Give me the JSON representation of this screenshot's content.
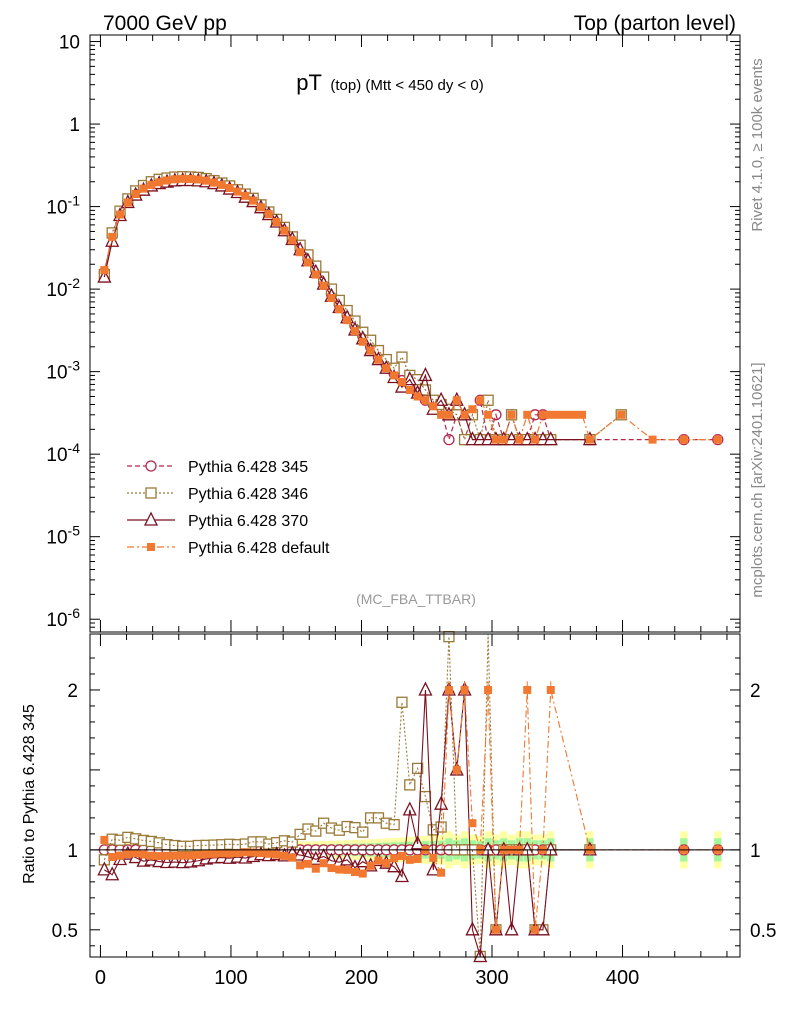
{
  "header": {
    "left": "7000 GeV pp",
    "right": "Top (parton level)"
  },
  "side_labels": {
    "rivet": "Rivet 4.1.0, ≥ 100k events",
    "mcplots": "mcplots.cern.ch [arXiv:2401.10621]"
  },
  "chart_data": {
    "type": "line",
    "title_main": "pT",
    "title_sub": "(top)  (Mtt < 450 dy < 0)",
    "analysis_tag": "(MC_FBA_TTBAR)",
    "xlim": [
      -8,
      490
    ],
    "x_ticks": [
      "0",
      "100",
      "200",
      "300",
      "400"
    ],
    "main_panel": {
      "yscale": "log",
      "ylim": [
        7e-07,
        12
      ],
      "y_ticks": [
        {
          "value": 10,
          "label": "10"
        },
        {
          "value": 1,
          "label": "1"
        },
        {
          "value": 0.1,
          "label": "10^-1"
        },
        {
          "value": 0.01,
          "label": "10^-2"
        },
        {
          "value": 0.001,
          "label": "10^-3"
        },
        {
          "value": 0.0001,
          "label": "10^-4"
        },
        {
          "value": 1e-05,
          "label": "10^-5"
        },
        {
          "value": 1e-06,
          "label": "10^-6"
        }
      ]
    },
    "ratio_panel": {
      "ylabel": "Ratio to Pythia 6.428 345",
      "ylim": [
        0.33,
        2.35
      ],
      "y_ticks": [
        {
          "value": 0.5,
          "label": "0.5"
        },
        {
          "value": 1,
          "label": "1"
        },
        {
          "value": 2,
          "label": "2"
        }
      ]
    },
    "series": [
      {
        "name": "Pythia 6.428 345",
        "color": "#b4284b",
        "marker": "circle",
        "dash": "5,3",
        "x": [
          3,
          9,
          15,
          21,
          27,
          33,
          39,
          45,
          51,
          57,
          63,
          69,
          75,
          81,
          87,
          93,
          99,
          105,
          111,
          117,
          123,
          129,
          135,
          141,
          147,
          153,
          159,
          165,
          171,
          177,
          183,
          189,
          195,
          201,
          207,
          213,
          219,
          225,
          231,
          237,
          243,
          249,
          255,
          261,
          267,
          273,
          279,
          285,
          291,
          297,
          303,
          309,
          315,
          321,
          327,
          333,
          339,
          345,
          375,
          447,
          473
        ],
        "values": [
          0.016,
          0.045,
          0.083,
          0.115,
          0.145,
          0.17,
          0.19,
          0.205,
          0.215,
          0.222,
          0.225,
          0.224,
          0.22,
          0.212,
          0.2,
          0.187,
          0.172,
          0.155,
          0.137,
          0.12,
          0.1,
          0.083,
          0.067,
          0.053,
          0.041,
          0.031,
          0.023,
          0.017,
          0.012,
          0.0088,
          0.0065,
          0.0048,
          0.0036,
          0.0027,
          0.002,
          0.0015,
          0.0012,
          0.00095,
          0.00078,
          0.00064,
          0.00053,
          0.00045,
          0.0004,
          0.00035,
          0.00015,
          0.0003,
          0.00015,
          0.0003,
          0.00045,
          0.00015,
          0.0003,
          0.00015,
          0.0003,
          0.00015,
          0.00015,
          0.0003,
          0.0003,
          0.00015,
          0.00015,
          0.00015,
          0.00015
        ]
      },
      {
        "name": "Pythia 6.428 346",
        "color": "#9a7a38",
        "marker": "square",
        "dash": "2,2",
        "x": [
          3,
          9,
          15,
          21,
          27,
          33,
          39,
          45,
          51,
          57,
          63,
          69,
          75,
          81,
          87,
          93,
          99,
          105,
          111,
          117,
          123,
          129,
          135,
          141,
          147,
          153,
          159,
          165,
          171,
          177,
          183,
          189,
          195,
          201,
          207,
          213,
          219,
          225,
          231,
          237,
          243,
          249,
          255,
          261,
          267,
          273,
          279,
          285,
          291,
          297,
          303,
          309,
          315,
          321,
          327,
          333,
          339,
          345,
          375,
          399
        ],
        "values": [
          0.015,
          0.048,
          0.088,
          0.124,
          0.155,
          0.18,
          0.2,
          0.214,
          0.222,
          0.228,
          0.23,
          0.229,
          0.226,
          0.218,
          0.206,
          0.193,
          0.178,
          0.16,
          0.142,
          0.126,
          0.105,
          0.086,
          0.07,
          0.056,
          0.043,
          0.034,
          0.026,
          0.019,
          0.014,
          0.01,
          0.0073,
          0.0055,
          0.0041,
          0.003,
          0.0024,
          0.0018,
          0.0014,
          0.0011,
          0.0015,
          0.0009,
          0.0008,
          0.0006,
          0.00045,
          0.0004,
          0.00035,
          0.0003,
          0.00015,
          0.0003,
          0.00015,
          0.00045,
          0.00015,
          0.00015,
          0.0003,
          0.00015,
          0.00015,
          0.00015,
          0.00015,
          0.00015,
          0.00015,
          0.0003
        ]
      },
      {
        "name": "Pythia 6.428 370",
        "color": "#7a1020",
        "marker": "triangle",
        "dash": "",
        "x": [
          3,
          9,
          15,
          21,
          27,
          33,
          39,
          45,
          51,
          57,
          63,
          69,
          75,
          81,
          87,
          93,
          99,
          105,
          111,
          117,
          123,
          129,
          135,
          141,
          147,
          153,
          159,
          165,
          171,
          177,
          183,
          189,
          195,
          201,
          207,
          213,
          219,
          225,
          231,
          237,
          243,
          249,
          255,
          261,
          267,
          273,
          279,
          285,
          291,
          297,
          303,
          309,
          315,
          321,
          327,
          333,
          339,
          345,
          375
        ],
        "values": [
          0.014,
          0.038,
          0.078,
          0.112,
          0.138,
          0.158,
          0.178,
          0.19,
          0.198,
          0.205,
          0.207,
          0.207,
          0.205,
          0.2,
          0.19,
          0.178,
          0.163,
          0.148,
          0.13,
          0.115,
          0.097,
          0.08,
          0.065,
          0.051,
          0.04,
          0.03,
          0.022,
          0.016,
          0.0115,
          0.0082,
          0.006,
          0.0045,
          0.0032,
          0.0025,
          0.0018,
          0.0014,
          0.0011,
          0.00085,
          0.00065,
          0.0008,
          0.00055,
          0.0009,
          0.00035,
          0.00045,
          0.0003,
          0.00045,
          0.0003,
          0.00015,
          0.00015,
          0.00015,
          0.00015,
          0.00015,
          0.00015,
          0.00015,
          0.00015,
          0.00015,
          0.00015,
          0.00015,
          0.00015
        ]
      },
      {
        "name": "Pythia 6.428 default",
        "color": "#f07830",
        "marker": "filled-square",
        "dash": "7,3,2,3",
        "x": [
          3,
          9,
          15,
          21,
          27,
          33,
          39,
          45,
          51,
          57,
          63,
          69,
          75,
          81,
          87,
          93,
          99,
          105,
          111,
          117,
          123,
          129,
          135,
          141,
          147,
          153,
          159,
          165,
          171,
          177,
          183,
          189,
          195,
          201,
          207,
          213,
          219,
          225,
          231,
          237,
          243,
          249,
          255,
          261,
          267,
          273,
          279,
          285,
          291,
          297,
          303,
          309,
          315,
          321,
          327,
          333,
          339,
          345,
          351,
          357,
          363,
          369,
          375,
          399,
          423,
          447,
          473
        ],
        "values": [
          0.017,
          0.043,
          0.08,
          0.112,
          0.142,
          0.165,
          0.183,
          0.197,
          0.207,
          0.214,
          0.217,
          0.216,
          0.213,
          0.206,
          0.195,
          0.183,
          0.168,
          0.152,
          0.135,
          0.118,
          0.098,
          0.081,
          0.065,
          0.051,
          0.039,
          0.028,
          0.021,
          0.015,
          0.011,
          0.0078,
          0.0057,
          0.0042,
          0.0031,
          0.0023,
          0.0018,
          0.0014,
          0.0011,
          0.0009,
          0.00075,
          0.0006,
          0.0005,
          0.00045,
          0.00038,
          0.0003,
          0.0003,
          0.00045,
          0.0003,
          0.00035,
          0.00045,
          0.0003,
          0.00015,
          0.00015,
          0.0003,
          0.00015,
          0.0003,
          0.00015,
          0.0003,
          0.0003,
          0.0003,
          0.0003,
          0.0003,
          0.0003,
          0.00015,
          0.0003,
          0.00015,
          0.00015,
          0.00015
        ]
      }
    ]
  }
}
